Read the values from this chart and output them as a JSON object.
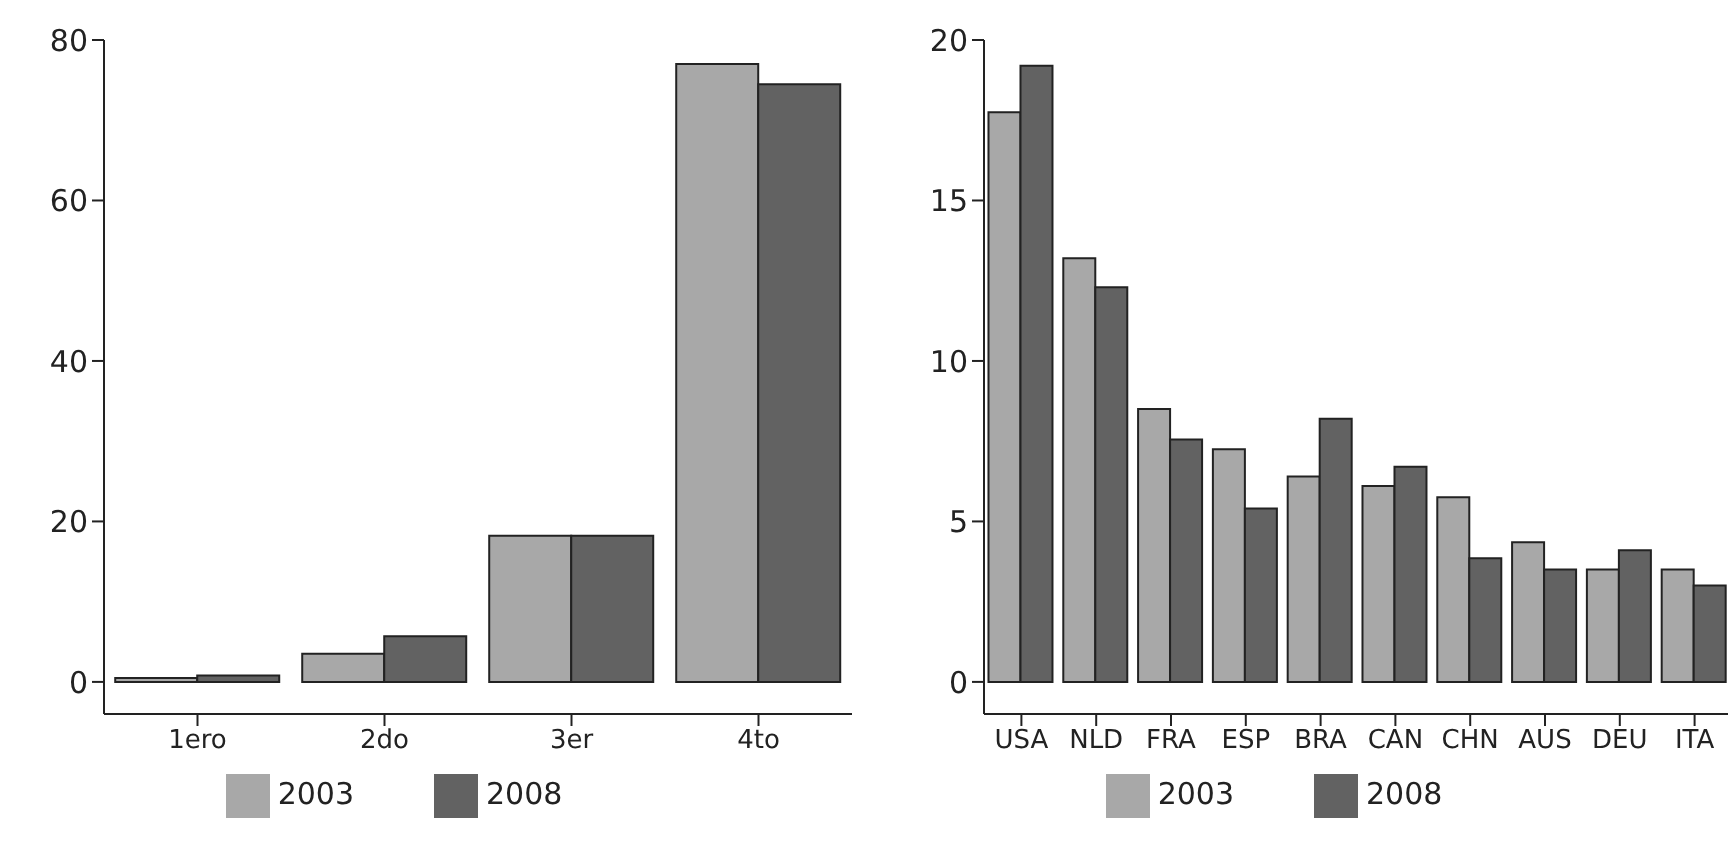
{
  "chart_data": [
    {
      "type": "bar",
      "categories": [
        "1ero",
        "2do",
        "3er",
        "4to"
      ],
      "series": [
        {
          "name": "2003",
          "color": "#a8a8a8",
          "values": [
            0.5,
            3.5,
            18.2,
            77
          ]
        },
        {
          "name": "2008",
          "color": "#626262",
          "values": [
            0.8,
            5.7,
            18.2,
            74.5
          ]
        }
      ],
      "ylim": [
        -4,
        80
      ],
      "yticks": [
        0,
        20,
        40,
        60,
        80
      ],
      "grid": false,
      "legend": "bottom"
    },
    {
      "type": "bar",
      "categories": [
        "USA",
        "NLD",
        "FRA",
        "ESP",
        "BRA",
        "CAN",
        "CHN",
        "AUS",
        "DEU",
        "ITA"
      ],
      "series": [
        {
          "name": "2003",
          "color": "#a8a8a8",
          "values": [
            17.75,
            13.2,
            8.5,
            7.25,
            6.4,
            6.1,
            5.75,
            4.35,
            3.5,
            3.5
          ]
        },
        {
          "name": "2008",
          "color": "#626262",
          "values": [
            19.2,
            12.3,
            7.55,
            5.4,
            8.2,
            6.7,
            3.85,
            3.5,
            4.1,
            3.0
          ]
        }
      ],
      "ylim": [
        -1,
        20
      ],
      "yticks": [
        0,
        5,
        10,
        15,
        20
      ],
      "grid": false,
      "legend": "bottom"
    }
  ]
}
